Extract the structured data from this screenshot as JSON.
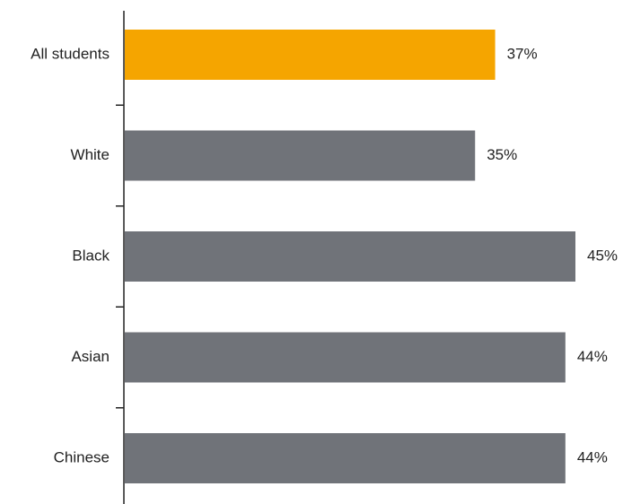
{
  "colors": {
    "highlight": "#F5A500",
    "bar": "#707379",
    "axis": "#222222",
    "text": "#222222"
  },
  "chart_data": {
    "type": "bar",
    "orientation": "horizontal",
    "title": "",
    "xlabel": "",
    "ylabel": "",
    "categories": [
      "All students",
      "White",
      "Black",
      "Asian",
      "Chinese"
    ],
    "values": [
      37,
      35,
      45,
      44,
      44
    ],
    "value_labels": [
      "37%",
      "35%",
      "45%",
      "44%",
      "44%"
    ],
    "highlight_index": 0,
    "xlim": [
      0,
      45
    ],
    "grid": false,
    "legend": "none"
  }
}
